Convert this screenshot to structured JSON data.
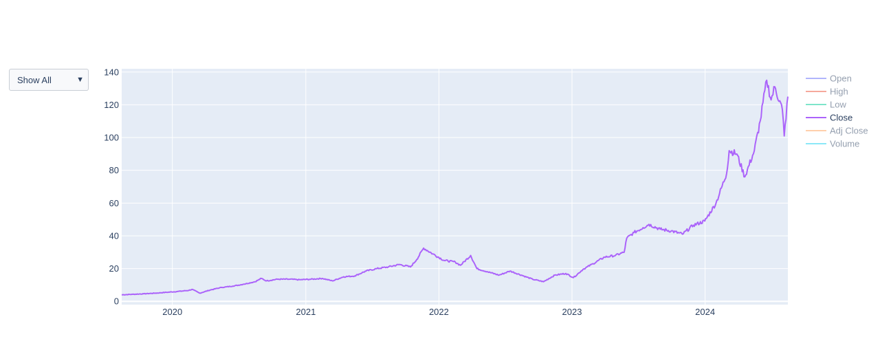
{
  "dropdown": {
    "selected": "Show All"
  },
  "chart_data": {
    "type": "line",
    "title": "",
    "xlabel": "",
    "ylabel": "",
    "x_range": [
      "2019-08-15",
      "2024-08-15"
    ],
    "ylim": [
      -2,
      142
    ],
    "x_ticks": [
      {
        "date": "2020-01-01",
        "label": "2020"
      },
      {
        "date": "2021-01-01",
        "label": "2021"
      },
      {
        "date": "2022-01-01",
        "label": "2022"
      },
      {
        "date": "2023-01-01",
        "label": "2023"
      },
      {
        "date": "2024-01-01",
        "label": "2024"
      }
    ],
    "y_ticks": [
      0,
      20,
      40,
      60,
      80,
      100,
      120,
      140
    ],
    "grid": true,
    "legend_position": "right",
    "colors": {
      "Open": "#636efa",
      "High": "#ef553b",
      "Low": "#00cc96",
      "Close": "#ab63fa",
      "Adj Close": "#ffa15a",
      "Volume": "#19d3f3"
    },
    "legend": [
      {
        "name": "Open",
        "visible": false
      },
      {
        "name": "High",
        "visible": false
      },
      {
        "name": "Low",
        "visible": false
      },
      {
        "name": "Close",
        "visible": true
      },
      {
        "name": "Adj Close",
        "visible": false
      },
      {
        "name": "Volume",
        "visible": false
      }
    ],
    "series": [
      {
        "name": "Close",
        "x": [
          "2019-08-15",
          "2019-09-15",
          "2019-10-15",
          "2019-11-15",
          "2019-12-15",
          "2020-01-15",
          "2020-02-15",
          "2020-02-24",
          "2020-03-16",
          "2020-04-15",
          "2020-05-15",
          "2020-06-15",
          "2020-07-15",
          "2020-08-15",
          "2020-09-01",
          "2020-09-15",
          "2020-10-15",
          "2020-11-15",
          "2020-12-15",
          "2021-01-15",
          "2021-02-15",
          "2021-03-15",
          "2021-04-15",
          "2021-05-15",
          "2021-06-15",
          "2021-07-15",
          "2021-08-15",
          "2021-09-15",
          "2021-10-15",
          "2021-11-01",
          "2021-11-20",
          "2021-12-15",
          "2022-01-15",
          "2022-02-15",
          "2022-03-01",
          "2022-03-29",
          "2022-04-15",
          "2022-05-15",
          "2022-06-15",
          "2022-07-15",
          "2022-08-15",
          "2022-09-15",
          "2022-10-15",
          "2022-11-15",
          "2022-12-15",
          "2023-01-05",
          "2023-01-31",
          "2023-02-28",
          "2023-03-31",
          "2023-04-30",
          "2023-05-24",
          "2023-05-31",
          "2023-06-20",
          "2023-07-15",
          "2023-07-31",
          "2023-08-31",
          "2023-09-30",
          "2023-10-31",
          "2023-11-30",
          "2023-12-31",
          "2024-01-31",
          "2024-02-29",
          "2024-03-07",
          "2024-03-28",
          "2024-04-19",
          "2024-05-15",
          "2024-05-31",
          "2024-06-18",
          "2024-06-30",
          "2024-07-10",
          "2024-07-31",
          "2024-08-05",
          "2024-08-15"
        ],
        "y": [
          4.0,
          4.3,
          4.6,
          5.0,
          5.5,
          6.0,
          6.7,
          7.3,
          5.0,
          7.0,
          8.5,
          9.3,
          10.5,
          12.0,
          14.0,
          12.5,
          13.5,
          13.5,
          13.2,
          13.5,
          14.0,
          12.5,
          15.0,
          15.5,
          18.5,
          20.0,
          21.0,
          22.5,
          21.0,
          25.5,
          32.5,
          29.0,
          25.0,
          24.0,
          22.0,
          28.0,
          20.0,
          18.0,
          16.0,
          18.5,
          16.0,
          13.5,
          12.0,
          16.0,
          17.0,
          14.5,
          19.5,
          23.0,
          27.0,
          28.0,
          30.0,
          38.5,
          42.0,
          45.0,
          47.0,
          44.0,
          43.0,
          41.0,
          46.5,
          49.0,
          60.0,
          78.0,
          92.0,
          90.0,
          76.0,
          92.0,
          110.0,
          135.0,
          123.0,
          131.0,
          117.0,
          101.0,
          125.0
        ]
      }
    ]
  }
}
